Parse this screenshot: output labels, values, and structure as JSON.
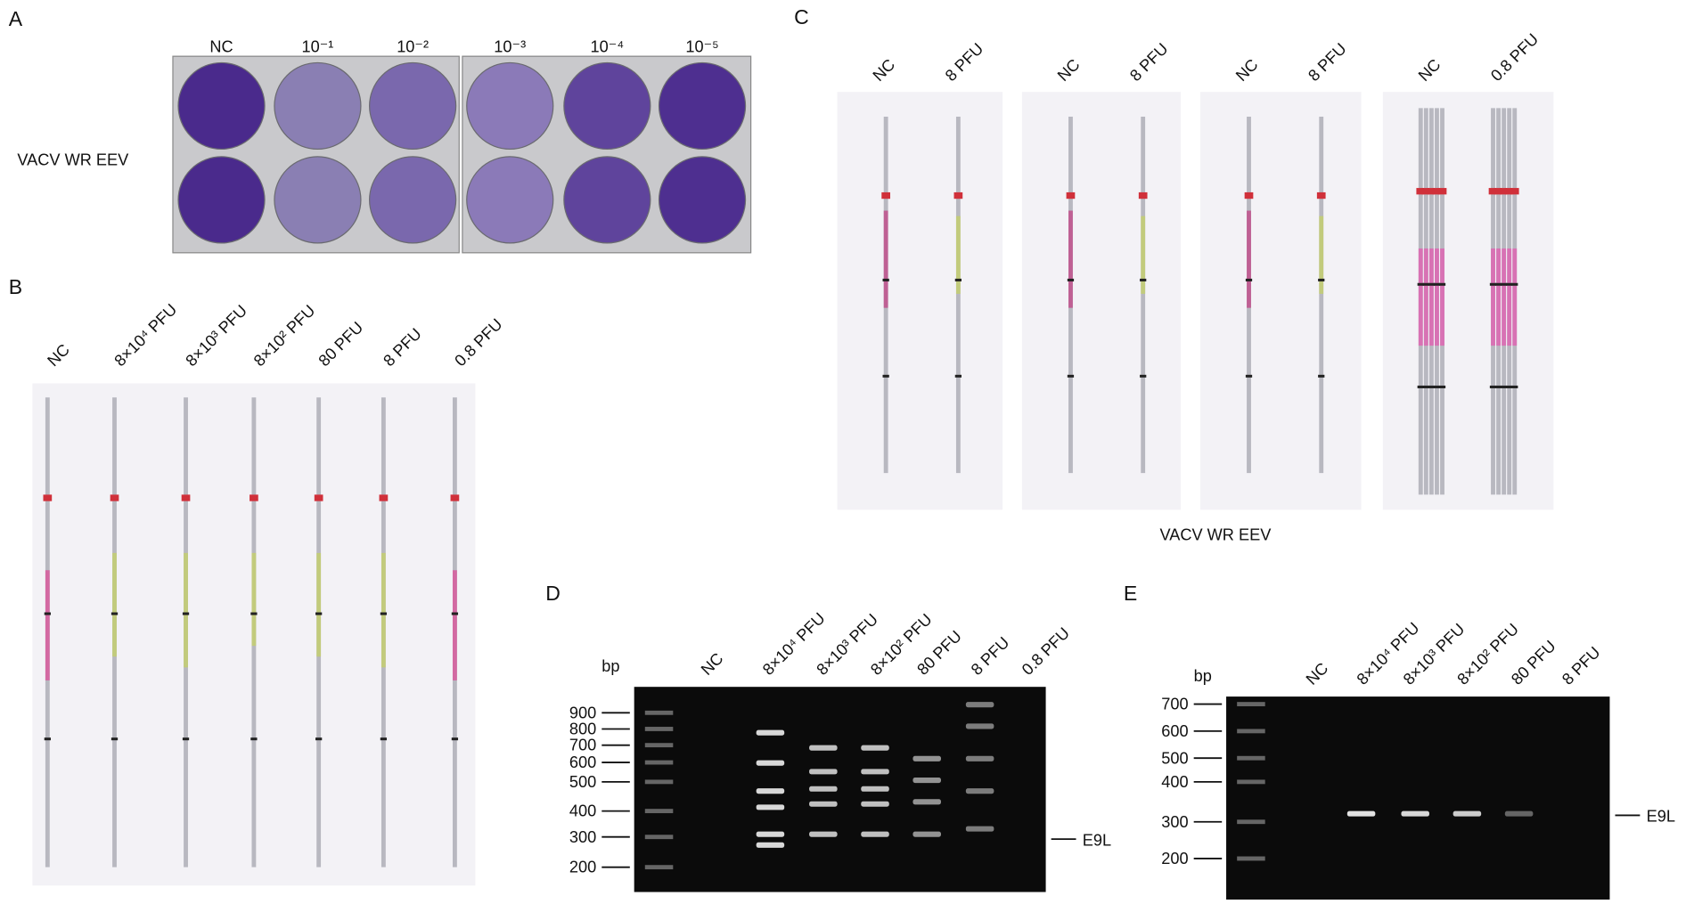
{
  "panels": {
    "a": {
      "label": "A",
      "row_label": "VACV WR EEV",
      "columns": [
        "NC",
        "10⁻¹",
        "10⁻²",
        "10⁻³",
        "10⁻⁴",
        "10⁻⁵"
      ]
    },
    "b": {
      "label": "B",
      "lanes": [
        "NC",
        "8×10⁴ PFU",
        "8×10³ PFU",
        "8×10² PFU",
        "80 PFU",
        "8 PFU",
        "0.8 PFU"
      ]
    },
    "c": {
      "label": "C",
      "groups": [
        [
          "NC",
          "8 PFU"
        ],
        [
          "NC",
          "8 PFU"
        ],
        [
          "NC",
          "8 PFU"
        ],
        [
          "NC",
          "0.8 PFU"
        ]
      ],
      "caption": "VACV WR EEV"
    },
    "d": {
      "label": "D",
      "unit": "bp",
      "lanes": [
        "NC",
        "8×10⁴ PFU",
        "8×10³ PFU",
        "8×10² PFU",
        "80 PFU",
        "8 PFU",
        "0.8 PFU"
      ],
      "markers": [
        900,
        800,
        700,
        600,
        500,
        400,
        300,
        200
      ],
      "band_label": "E9L"
    },
    "e": {
      "label": "E",
      "unit": "bp",
      "lanes": [
        "NC",
        "8×10⁴ PFU",
        "8×10³ PFU",
        "8×10² PFU",
        "80 PFU",
        "8 PFU"
      ],
      "markers": [
        700,
        600,
        500,
        400,
        300,
        200
      ],
      "band_label": "E9L"
    }
  }
}
